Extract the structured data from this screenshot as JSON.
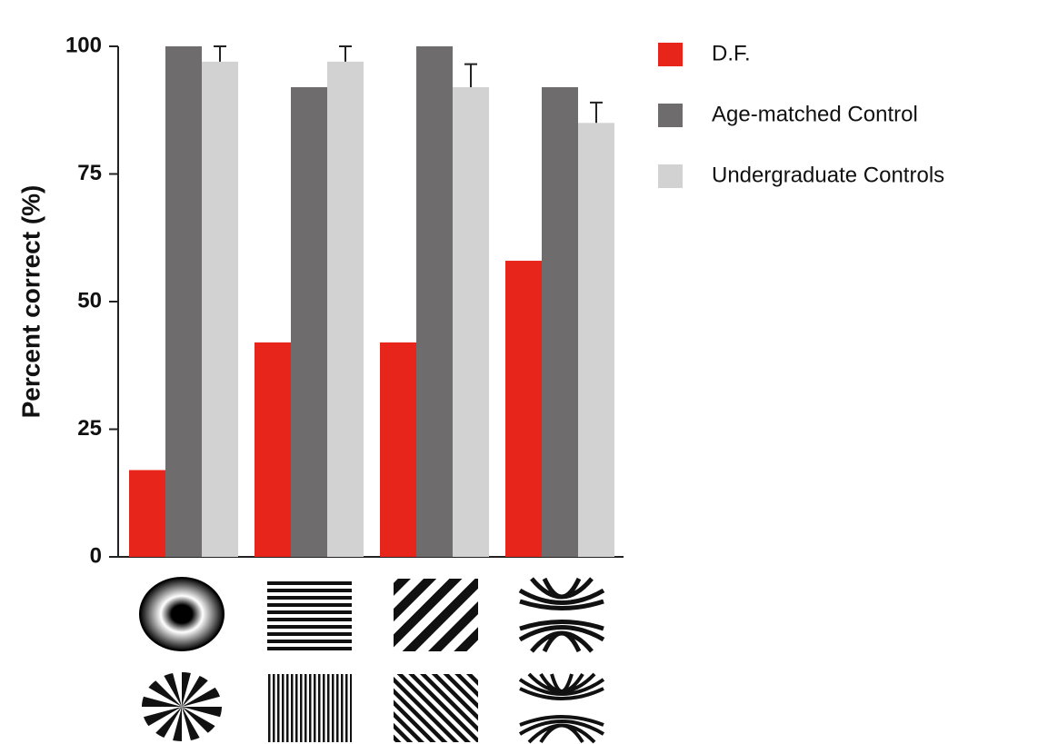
{
  "chart_data": {
    "type": "bar",
    "y_label": "Percent correct (%)",
    "categories": [
      null,
      null,
      null,
      null
    ],
    "series": [
      {
        "name": "D.F.",
        "color": "#e8251b",
        "values": [
          17,
          42,
          42,
          58
        ]
      },
      {
        "name": "Age-matched Control",
        "color": "#6e6c6d",
        "values": [
          100,
          92,
          100,
          92
        ]
      },
      {
        "name": "Undergraduate Controls",
        "color": "#d2d2d2",
        "values": [
          97,
          97,
          92,
          85
        ],
        "errors": [
          3,
          3,
          4.5,
          4
        ]
      }
    ],
    "ylim": [
      0,
      100
    ],
    "yticks": [
      0,
      25,
      50,
      75,
      100
    ],
    "grid": false,
    "legend": "right"
  }
}
